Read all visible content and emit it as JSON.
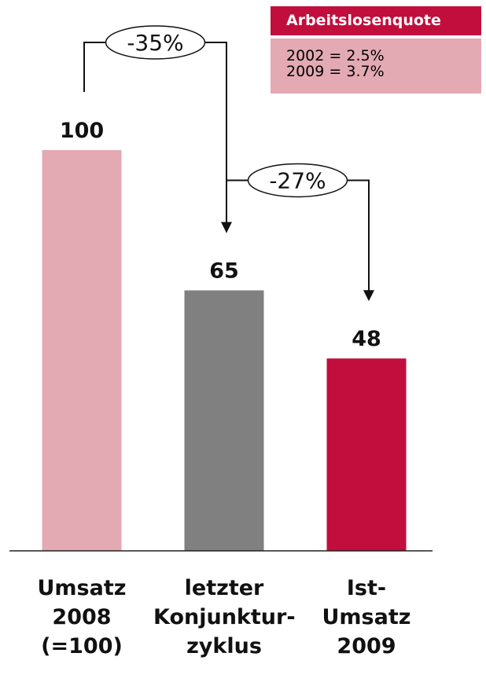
{
  "chart_data": {
    "type": "bar",
    "categories": [
      [
        "Umsatz",
        "2008",
        "(=100)"
      ],
      [
        "letzter",
        "Konjunktur-",
        "zyklus"
      ],
      [
        "Ist-",
        "Umsatz",
        "2009"
      ]
    ],
    "values": [
      100,
      65,
      48
    ],
    "data_labels": [
      "100",
      "65",
      "48"
    ],
    "colors": [
      "#e3aab4",
      "#808080",
      "#c20e3c"
    ],
    "ylim": [
      0,
      100
    ],
    "annotations": [
      {
        "label": "-35%",
        "from": 0,
        "to": 1
      },
      {
        "label": "-27%",
        "from": 1,
        "to": 2
      }
    ]
  },
  "legend": {
    "title": "Arbeitslosenquote",
    "lines": [
      "2002 = 2.5%",
      "2009 = 3.7%"
    ]
  }
}
